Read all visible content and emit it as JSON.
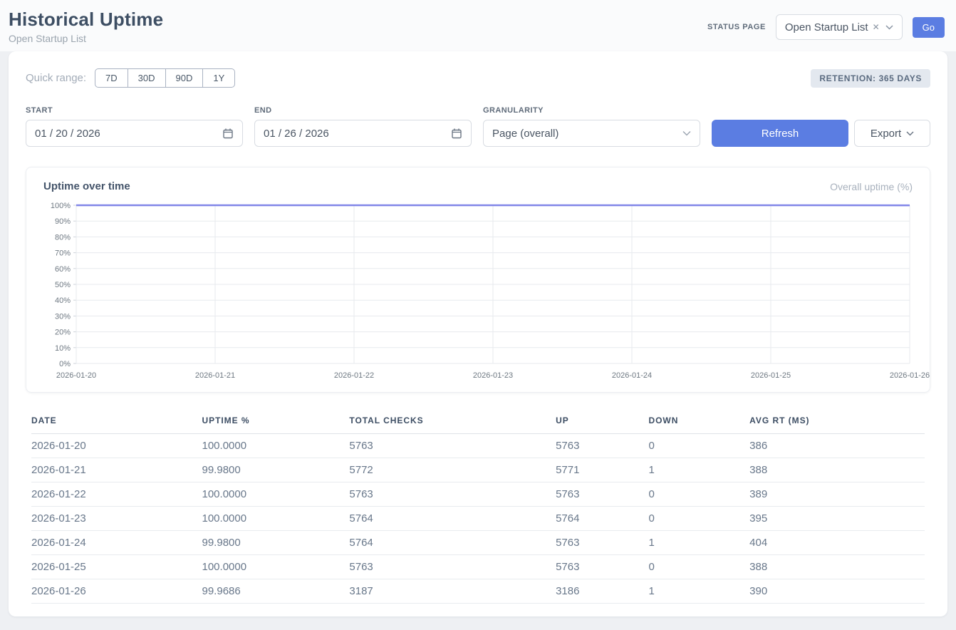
{
  "header": {
    "title": "Historical Uptime",
    "subtitle": "Open Startup List",
    "status_page_label": "STATUS PAGE",
    "status_page_value": "Open Startup List",
    "clear_glyph": "✕",
    "go_label": "Go"
  },
  "filters": {
    "quick_range_label": "Quick range:",
    "quick_ranges": [
      "7D",
      "30D",
      "90D",
      "1Y"
    ],
    "retention_badge": "RETENTION: 365 DAYS",
    "start_label": "START",
    "start_value": "01 / 20 / 2026",
    "end_label": "END",
    "end_value": "01 / 26 / 2026",
    "granularity_label": "GRANULARITY",
    "granularity_value": "Page (overall)",
    "refresh_label": "Refresh",
    "export_label": "Export"
  },
  "chart": {
    "title": "Uptime over time",
    "legend": "Overall uptime (%)"
  },
  "chart_data": {
    "type": "line",
    "title": "Uptime over time",
    "x": [
      "2026-01-20",
      "2026-01-21",
      "2026-01-22",
      "2026-01-23",
      "2026-01-24",
      "2026-01-25",
      "2026-01-26"
    ],
    "series": [
      {
        "name": "Overall uptime (%)",
        "values": [
          100.0,
          99.98,
          100.0,
          100.0,
          99.98,
          100.0,
          99.9686
        ]
      }
    ],
    "ylim": [
      0,
      100
    ],
    "ytick_step": 10,
    "ytick_suffix": "%",
    "grid": true,
    "legend_position": "top-right",
    "line_color": "#8186e8"
  },
  "table": {
    "columns": [
      "DATE",
      "UPTIME %",
      "TOTAL CHECKS",
      "UP",
      "DOWN",
      "AVG RT (MS)"
    ],
    "rows": [
      [
        "2026-01-20",
        "100.0000",
        "5763",
        "5763",
        "0",
        "386"
      ],
      [
        "2026-01-21",
        "99.9800",
        "5772",
        "5771",
        "1",
        "388"
      ],
      [
        "2026-01-22",
        "100.0000",
        "5763",
        "5763",
        "0",
        "389"
      ],
      [
        "2026-01-23",
        "100.0000",
        "5764",
        "5764",
        "0",
        "395"
      ],
      [
        "2026-01-24",
        "99.9800",
        "5764",
        "5763",
        "1",
        "404"
      ],
      [
        "2026-01-25",
        "100.0000",
        "5763",
        "5763",
        "0",
        "388"
      ],
      [
        "2026-01-26",
        "99.9686",
        "3187",
        "3186",
        "1",
        "390"
      ]
    ]
  },
  "colors": {
    "accent": "#5b7de2",
    "chart_line": "#8186e8",
    "grid_line": "#e7eaee"
  }
}
